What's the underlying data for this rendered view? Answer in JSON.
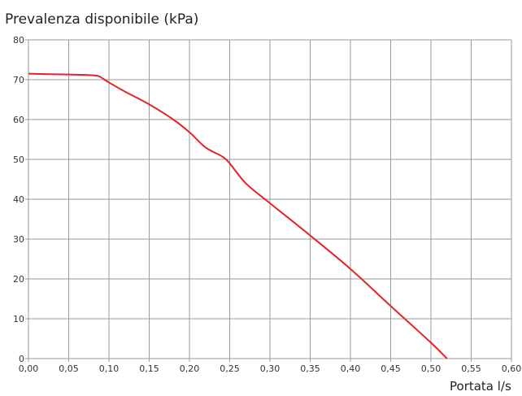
{
  "chart_data": {
    "type": "line",
    "title": "Prevalenza disponibile (kPa)",
    "xlabel": "Portata l/s",
    "ylabel": "",
    "xlim": [
      0.0,
      0.6
    ],
    "ylim": [
      0,
      80
    ],
    "x_ticks": [
      "0,00",
      "0,05",
      "0,10",
      "0,15",
      "0,20",
      "0,25",
      "0,30",
      "0,35",
      "0,40",
      "0,45",
      "0,50",
      "0,55",
      "0,60"
    ],
    "y_ticks": [
      "0",
      "10",
      "20",
      "30",
      "40",
      "50",
      "60",
      "70",
      "80"
    ],
    "grid": true,
    "series": [
      {
        "color": "#e3232b",
        "x": [
          0.0,
          0.02,
          0.05,
          0.07,
          0.085,
          0.09,
          0.1,
          0.12,
          0.15,
          0.18,
          0.2,
          0.22,
          0.24,
          0.25,
          0.27,
          0.3,
          0.35,
          0.4,
          0.45,
          0.5,
          0.52
        ],
        "y": [
          71.5,
          71.4,
          71.3,
          71.2,
          71.0,
          70.6,
          69.3,
          67.0,
          63.8,
          60.0,
          56.8,
          53.0,
          50.8,
          49.0,
          44.0,
          39.0,
          30.9,
          22.5,
          13.2,
          4.0,
          0.0
        ]
      }
    ]
  }
}
